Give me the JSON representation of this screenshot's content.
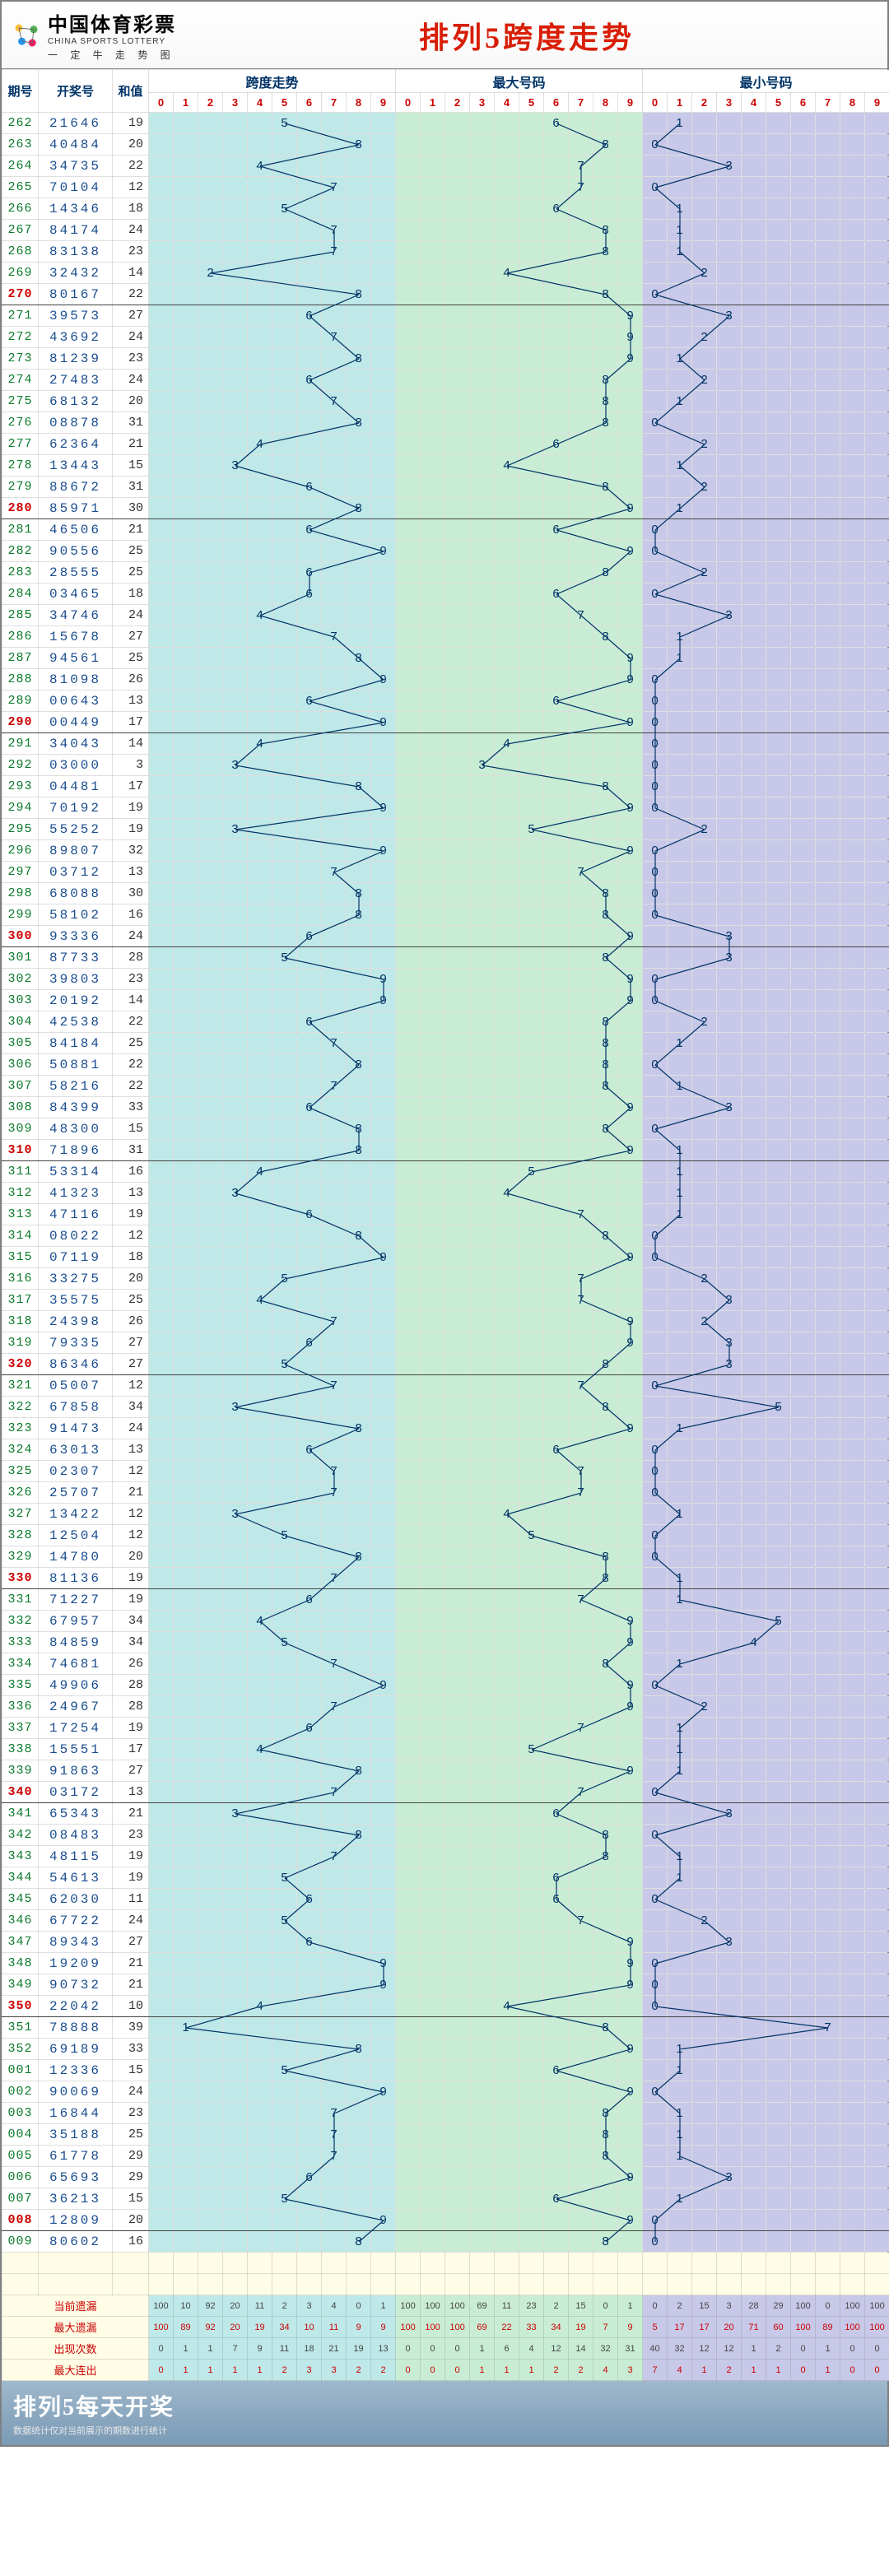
{
  "header": {
    "brand_cn": "中国体育彩票",
    "brand_en": "CHINA SPORTS LOTTERY",
    "brand_sub": "一 定 牛 走 势 图",
    "title": "排列5跨度走势"
  },
  "columns": {
    "period": "期号",
    "draw": "开奖号",
    "sum": "和值",
    "sec1": "跨度走势",
    "sec2": "最大号码",
    "sec3": "最小号码",
    "digits": [
      "0",
      "1",
      "2",
      "3",
      "4",
      "5",
      "6",
      "7",
      "8",
      "9"
    ]
  },
  "colors": {
    "sec1_bg": "#bfe8e8",
    "sec2_bg": "#c8edd4",
    "sec3_bg": "#c8c8e8",
    "line": "#003366",
    "period": "#0a7a2a",
    "period_hl": "#c00",
    "draw": "#1a4d8f",
    "th": "#003366"
  },
  "cell": {
    "w": 30,
    "h": 26
  },
  "rows": [
    {
      "p": "262",
      "d": "21646",
      "s": 19,
      "a": 5,
      "b": 6,
      "c": 1
    },
    {
      "p": "263",
      "d": "40484",
      "s": 20,
      "a": 8,
      "b": 8,
      "c": 0
    },
    {
      "p": "264",
      "d": "34735",
      "s": 22,
      "a": 4,
      "b": 7,
      "c": 3
    },
    {
      "p": "265",
      "d": "70104",
      "s": 12,
      "a": 7,
      "b": 7,
      "c": 0
    },
    {
      "p": "266",
      "d": "14346",
      "s": 18,
      "a": 5,
      "b": 6,
      "c": 1
    },
    {
      "p": "267",
      "d": "84174",
      "s": 24,
      "a": 7,
      "b": 8,
      "c": 1
    },
    {
      "p": "268",
      "d": "83138",
      "s": 23,
      "a": 7,
      "b": 8,
      "c": 1
    },
    {
      "p": "269",
      "d": "32432",
      "s": 14,
      "a": 2,
      "b": 4,
      "c": 2
    },
    {
      "p": "270",
      "d": "80167",
      "s": 22,
      "a": 8,
      "b": 8,
      "c": 0,
      "hl": true
    },
    {
      "p": "271",
      "d": "39573",
      "s": 27,
      "a": 6,
      "b": 9,
      "c": 3
    },
    {
      "p": "272",
      "d": "43692",
      "s": 24,
      "a": 7,
      "b": 9,
      "c": 2
    },
    {
      "p": "273",
      "d": "81239",
      "s": 23,
      "a": 8,
      "b": 9,
      "c": 1
    },
    {
      "p": "274",
      "d": "27483",
      "s": 24,
      "a": 6,
      "b": 8,
      "c": 2
    },
    {
      "p": "275",
      "d": "68132",
      "s": 20,
      "a": 7,
      "b": 8,
      "c": 1
    },
    {
      "p": "276",
      "d": "08878",
      "s": 31,
      "a": 8,
      "b": 8,
      "c": 0
    },
    {
      "p": "277",
      "d": "62364",
      "s": 21,
      "a": 4,
      "b": 6,
      "c": 2
    },
    {
      "p": "278",
      "d": "13443",
      "s": 15,
      "a": 3,
      "b": 4,
      "c": 1
    },
    {
      "p": "279",
      "d": "88672",
      "s": 31,
      "a": 6,
      "b": 8,
      "c": 2
    },
    {
      "p": "280",
      "d": "85971",
      "s": 30,
      "a": 8,
      "b": 9,
      "c": 1,
      "hl": true
    },
    {
      "p": "281",
      "d": "46506",
      "s": 21,
      "a": 6,
      "b": 6,
      "c": 0
    },
    {
      "p": "282",
      "d": "90556",
      "s": 25,
      "a": 9,
      "b": 9,
      "c": 0
    },
    {
      "p": "283",
      "d": "28555",
      "s": 25,
      "a": 6,
      "b": 8,
      "c": 2
    },
    {
      "p": "284",
      "d": "03465",
      "s": 18,
      "a": 6,
      "b": 6,
      "c": 0
    },
    {
      "p": "285",
      "d": "34746",
      "s": 24,
      "a": 4,
      "b": 7,
      "c": 3
    },
    {
      "p": "286",
      "d": "15678",
      "s": 27,
      "a": 7,
      "b": 8,
      "c": 1
    },
    {
      "p": "287",
      "d": "94561",
      "s": 25,
      "a": 8,
      "b": 9,
      "c": 1
    },
    {
      "p": "288",
      "d": "81098",
      "s": 26,
      "a": 9,
      "b": 9,
      "c": 0
    },
    {
      "p": "289",
      "d": "00643",
      "s": 13,
      "a": 6,
      "b": 6,
      "c": 0
    },
    {
      "p": "290",
      "d": "00449",
      "s": 17,
      "a": 9,
      "b": 9,
      "c": 0,
      "hl": true
    },
    {
      "p": "291",
      "d": "34043",
      "s": 14,
      "a": 4,
      "b": 4,
      "c": 0
    },
    {
      "p": "292",
      "d": "03000",
      "s": 3,
      "a": 3,
      "b": 3,
      "c": 0
    },
    {
      "p": "293",
      "d": "04481",
      "s": 17,
      "a": 8,
      "b": 8,
      "c": 0
    },
    {
      "p": "294",
      "d": "70192",
      "s": 19,
      "a": 9,
      "b": 9,
      "c": 0
    },
    {
      "p": "295",
      "d": "55252",
      "s": 19,
      "a": 3,
      "b": 5,
      "c": 2
    },
    {
      "p": "296",
      "d": "89807",
      "s": 32,
      "a": 9,
      "b": 9,
      "c": 0
    },
    {
      "p": "297",
      "d": "03712",
      "s": 13,
      "a": 7,
      "b": 7,
      "c": 0
    },
    {
      "p": "298",
      "d": "68088",
      "s": 30,
      "a": 8,
      "b": 8,
      "c": 0
    },
    {
      "p": "299",
      "d": "58102",
      "s": 16,
      "a": 8,
      "b": 8,
      "c": 0
    },
    {
      "p": "300",
      "d": "93336",
      "s": 24,
      "a": 6,
      "b": 9,
      "c": 3,
      "hl": true
    },
    {
      "p": "301",
      "d": "87733",
      "s": 28,
      "a": 5,
      "b": 8,
      "c": 3
    },
    {
      "p": "302",
      "d": "39803",
      "s": 23,
      "a": 9,
      "b": 9,
      "c": 0
    },
    {
      "p": "303",
      "d": "20192",
      "s": 14,
      "a": 9,
      "b": 9,
      "c": 0
    },
    {
      "p": "304",
      "d": "42538",
      "s": 22,
      "a": 6,
      "b": 8,
      "c": 2
    },
    {
      "p": "305",
      "d": "84184",
      "s": 25,
      "a": 7,
      "b": 8,
      "c": 1
    },
    {
      "p": "306",
      "d": "50881",
      "s": 22,
      "a": 8,
      "b": 8,
      "c": 0
    },
    {
      "p": "307",
      "d": "58216",
      "s": 22,
      "a": 7,
      "b": 8,
      "c": 1
    },
    {
      "p": "308",
      "d": "84399",
      "s": 33,
      "a": 6,
      "b": 9,
      "c": 3
    },
    {
      "p": "309",
      "d": "48300",
      "s": 15,
      "a": 8,
      "b": 8,
      "c": 0
    },
    {
      "p": "310",
      "d": "71896",
      "s": 31,
      "a": 8,
      "b": 9,
      "c": 1,
      "hl": true
    },
    {
      "p": "311",
      "d": "53314",
      "s": 16,
      "a": 4,
      "b": 5,
      "c": 1
    },
    {
      "p": "312",
      "d": "41323",
      "s": 13,
      "a": 3,
      "b": 4,
      "c": 1
    },
    {
      "p": "313",
      "d": "47116",
      "s": 19,
      "a": 6,
      "b": 7,
      "c": 1
    },
    {
      "p": "314",
      "d": "08022",
      "s": 12,
      "a": 8,
      "b": 8,
      "c": 0
    },
    {
      "p": "315",
      "d": "07119",
      "s": 18,
      "a": 9,
      "b": 9,
      "c": 0
    },
    {
      "p": "316",
      "d": "33275",
      "s": 20,
      "a": 5,
      "b": 7,
      "c": 2
    },
    {
      "p": "317",
      "d": "35575",
      "s": 25,
      "a": 4,
      "b": 7,
      "c": 3
    },
    {
      "p": "318",
      "d": "24398",
      "s": 26,
      "a": 7,
      "b": 9,
      "c": 2
    },
    {
      "p": "319",
      "d": "79335",
      "s": 27,
      "a": 6,
      "b": 9,
      "c": 3
    },
    {
      "p": "320",
      "d": "86346",
      "s": 27,
      "a": 5,
      "b": 8,
      "c": 3,
      "hl": true
    },
    {
      "p": "321",
      "d": "05007",
      "s": 12,
      "a": 7,
      "b": 7,
      "c": 0
    },
    {
      "p": "322",
      "d": "67858",
      "s": 34,
      "a": 3,
      "b": 8,
      "c": 5
    },
    {
      "p": "323",
      "d": "91473",
      "s": 24,
      "a": 8,
      "b": 9,
      "c": 1
    },
    {
      "p": "324",
      "d": "63013",
      "s": 13,
      "a": 6,
      "b": 6,
      "c": 0
    },
    {
      "p": "325",
      "d": "02307",
      "s": 12,
      "a": 7,
      "b": 7,
      "c": 0
    },
    {
      "p": "326",
      "d": "25707",
      "s": 21,
      "a": 7,
      "b": 7,
      "c": 0
    },
    {
      "p": "327",
      "d": "13422",
      "s": 12,
      "a": 3,
      "b": 4,
      "c": 1
    },
    {
      "p": "328",
      "d": "12504",
      "s": 12,
      "a": 5,
      "b": 5,
      "c": 0
    },
    {
      "p": "329",
      "d": "14780",
      "s": 20,
      "a": 8,
      "b": 8,
      "c": 0
    },
    {
      "p": "330",
      "d": "81136",
      "s": 19,
      "a": 7,
      "b": 8,
      "c": 1,
      "hl": true
    },
    {
      "p": "331",
      "d": "71227",
      "s": 19,
      "a": 6,
      "b": 7,
      "c": 1
    },
    {
      "p": "332",
      "d": "67957",
      "s": 34,
      "a": 4,
      "b": 9,
      "c": 5
    },
    {
      "p": "333",
      "d": "84859",
      "s": 34,
      "a": 5,
      "b": 9,
      "c": 4
    },
    {
      "p": "334",
      "d": "74681",
      "s": 26,
      "a": 7,
      "b": 8,
      "c": 1
    },
    {
      "p": "335",
      "d": "49906",
      "s": 28,
      "a": 9,
      "b": 9,
      "c": 0
    },
    {
      "p": "336",
      "d": "24967",
      "s": 28,
      "a": 7,
      "b": 9,
      "c": 2
    },
    {
      "p": "337",
      "d": "17254",
      "s": 19,
      "a": 6,
      "b": 7,
      "c": 1
    },
    {
      "p": "338",
      "d": "15551",
      "s": 17,
      "a": 4,
      "b": 5,
      "c": 1
    },
    {
      "p": "339",
      "d": "91863",
      "s": 27,
      "a": 8,
      "b": 9,
      "c": 1
    },
    {
      "p": "340",
      "d": "03172",
      "s": 13,
      "a": 7,
      "b": 7,
      "c": 0,
      "hl": true
    },
    {
      "p": "341",
      "d": "65343",
      "s": 21,
      "a": 3,
      "b": 6,
      "c": 3
    },
    {
      "p": "342",
      "d": "08483",
      "s": 23,
      "a": 8,
      "b": 8,
      "c": 0
    },
    {
      "p": "343",
      "d": "48115",
      "s": 19,
      "a": 7,
      "b": 8,
      "c": 1
    },
    {
      "p": "344",
      "d": "54613",
      "s": 19,
      "a": 5,
      "b": 6,
      "c": 1
    },
    {
      "p": "345",
      "d": "62030",
      "s": 11,
      "a": 6,
      "b": 6,
      "c": 0
    },
    {
      "p": "346",
      "d": "67722",
      "s": 24,
      "a": 5,
      "b": 7,
      "c": 2
    },
    {
      "p": "347",
      "d": "89343",
      "s": 27,
      "a": 6,
      "b": 9,
      "c": 3
    },
    {
      "p": "348",
      "d": "19209",
      "s": 21,
      "a": 9,
      "b": 9,
      "c": 0
    },
    {
      "p": "349",
      "d": "90732",
      "s": 21,
      "a": 9,
      "b": 9,
      "c": 0
    },
    {
      "p": "350",
      "d": "22042",
      "s": 10,
      "a": 4,
      "b": 4,
      "c": 0,
      "hl": true
    },
    {
      "p": "351",
      "d": "78888",
      "s": 39,
      "a": 1,
      "b": 8,
      "c": 7
    },
    {
      "p": "352",
      "d": "69189",
      "s": 33,
      "a": 8,
      "b": 9,
      "c": 1
    },
    {
      "p": "001",
      "d": "12336",
      "s": 15,
      "a": 5,
      "b": 6,
      "c": 1
    },
    {
      "p": "002",
      "d": "90069",
      "s": 24,
      "a": 9,
      "b": 9,
      "c": 0
    },
    {
      "p": "003",
      "d": "16844",
      "s": 23,
      "a": 7,
      "b": 8,
      "c": 1
    },
    {
      "p": "004",
      "d": "35188",
      "s": 25,
      "a": 7,
      "b": 8,
      "c": 1
    },
    {
      "p": "005",
      "d": "61778",
      "s": 29,
      "a": 7,
      "b": 8,
      "c": 1
    },
    {
      "p": "006",
      "d": "65693",
      "s": 29,
      "a": 6,
      "b": 9,
      "c": 3
    },
    {
      "p": "007",
      "d": "36213",
      "s": 15,
      "a": 5,
      "b": 6,
      "c": 1
    },
    {
      "p": "008",
      "d": "12809",
      "s": 20,
      "a": 9,
      "b": 9,
      "c": 0,
      "hl": true
    },
    {
      "p": "009",
      "d": "80602",
      "s": 16,
      "a": 8,
      "b": 8,
      "c": 0
    }
  ],
  "stats": [
    {
      "label": "当前遗漏",
      "a": [
        "100",
        "10",
        "92",
        "20",
        "11",
        "2",
        "3",
        "4",
        "0",
        "1"
      ],
      "b": [
        "100",
        "100",
        "100",
        "69",
        "11",
        "23",
        "2",
        "15",
        "0",
        "1"
      ],
      "c": [
        "0",
        "2",
        "15",
        "3",
        "28",
        "29",
        "100",
        "0",
        "100",
        "100"
      ],
      "red": false
    },
    {
      "label": "最大遗漏",
      "a": [
        "100",
        "89",
        "92",
        "20",
        "19",
        "34",
        "10",
        "11",
        "9",
        "9"
      ],
      "b": [
        "100",
        "100",
        "100",
        "69",
        "22",
        "33",
        "34",
        "19",
        "7",
        "9"
      ],
      "c": [
        "5",
        "17",
        "17",
        "20",
        "71",
        "60",
        "100",
        "89",
        "100",
        "100"
      ],
      "red": true
    },
    {
      "label": "出现次数",
      "a": [
        "0",
        "1",
        "1",
        "7",
        "9",
        "11",
        "18",
        "21",
        "19",
        "13"
      ],
      "b": [
        "0",
        "0",
        "0",
        "1",
        "6",
        "4",
        "12",
        "14",
        "32",
        "31"
      ],
      "c": [
        "40",
        "32",
        "12",
        "12",
        "1",
        "2",
        "0",
        "1",
        "0",
        "0"
      ],
      "red": false
    },
    {
      "label": "最大连出",
      "a": [
        "0",
        "1",
        "1",
        "1",
        "1",
        "2",
        "3",
        "3",
        "2",
        "2"
      ],
      "b": [
        "0",
        "0",
        "0",
        "1",
        "1",
        "1",
        "2",
        "2",
        "4",
        "3"
      ],
      "c": [
        "7",
        "4",
        "1",
        "2",
        "1",
        "1",
        "0",
        "1",
        "0",
        "0"
      ],
      "red": true
    }
  ],
  "footer": {
    "title": "排列5每天开奖",
    "sub": "数据统计仅对当前展示的期数进行统计"
  }
}
